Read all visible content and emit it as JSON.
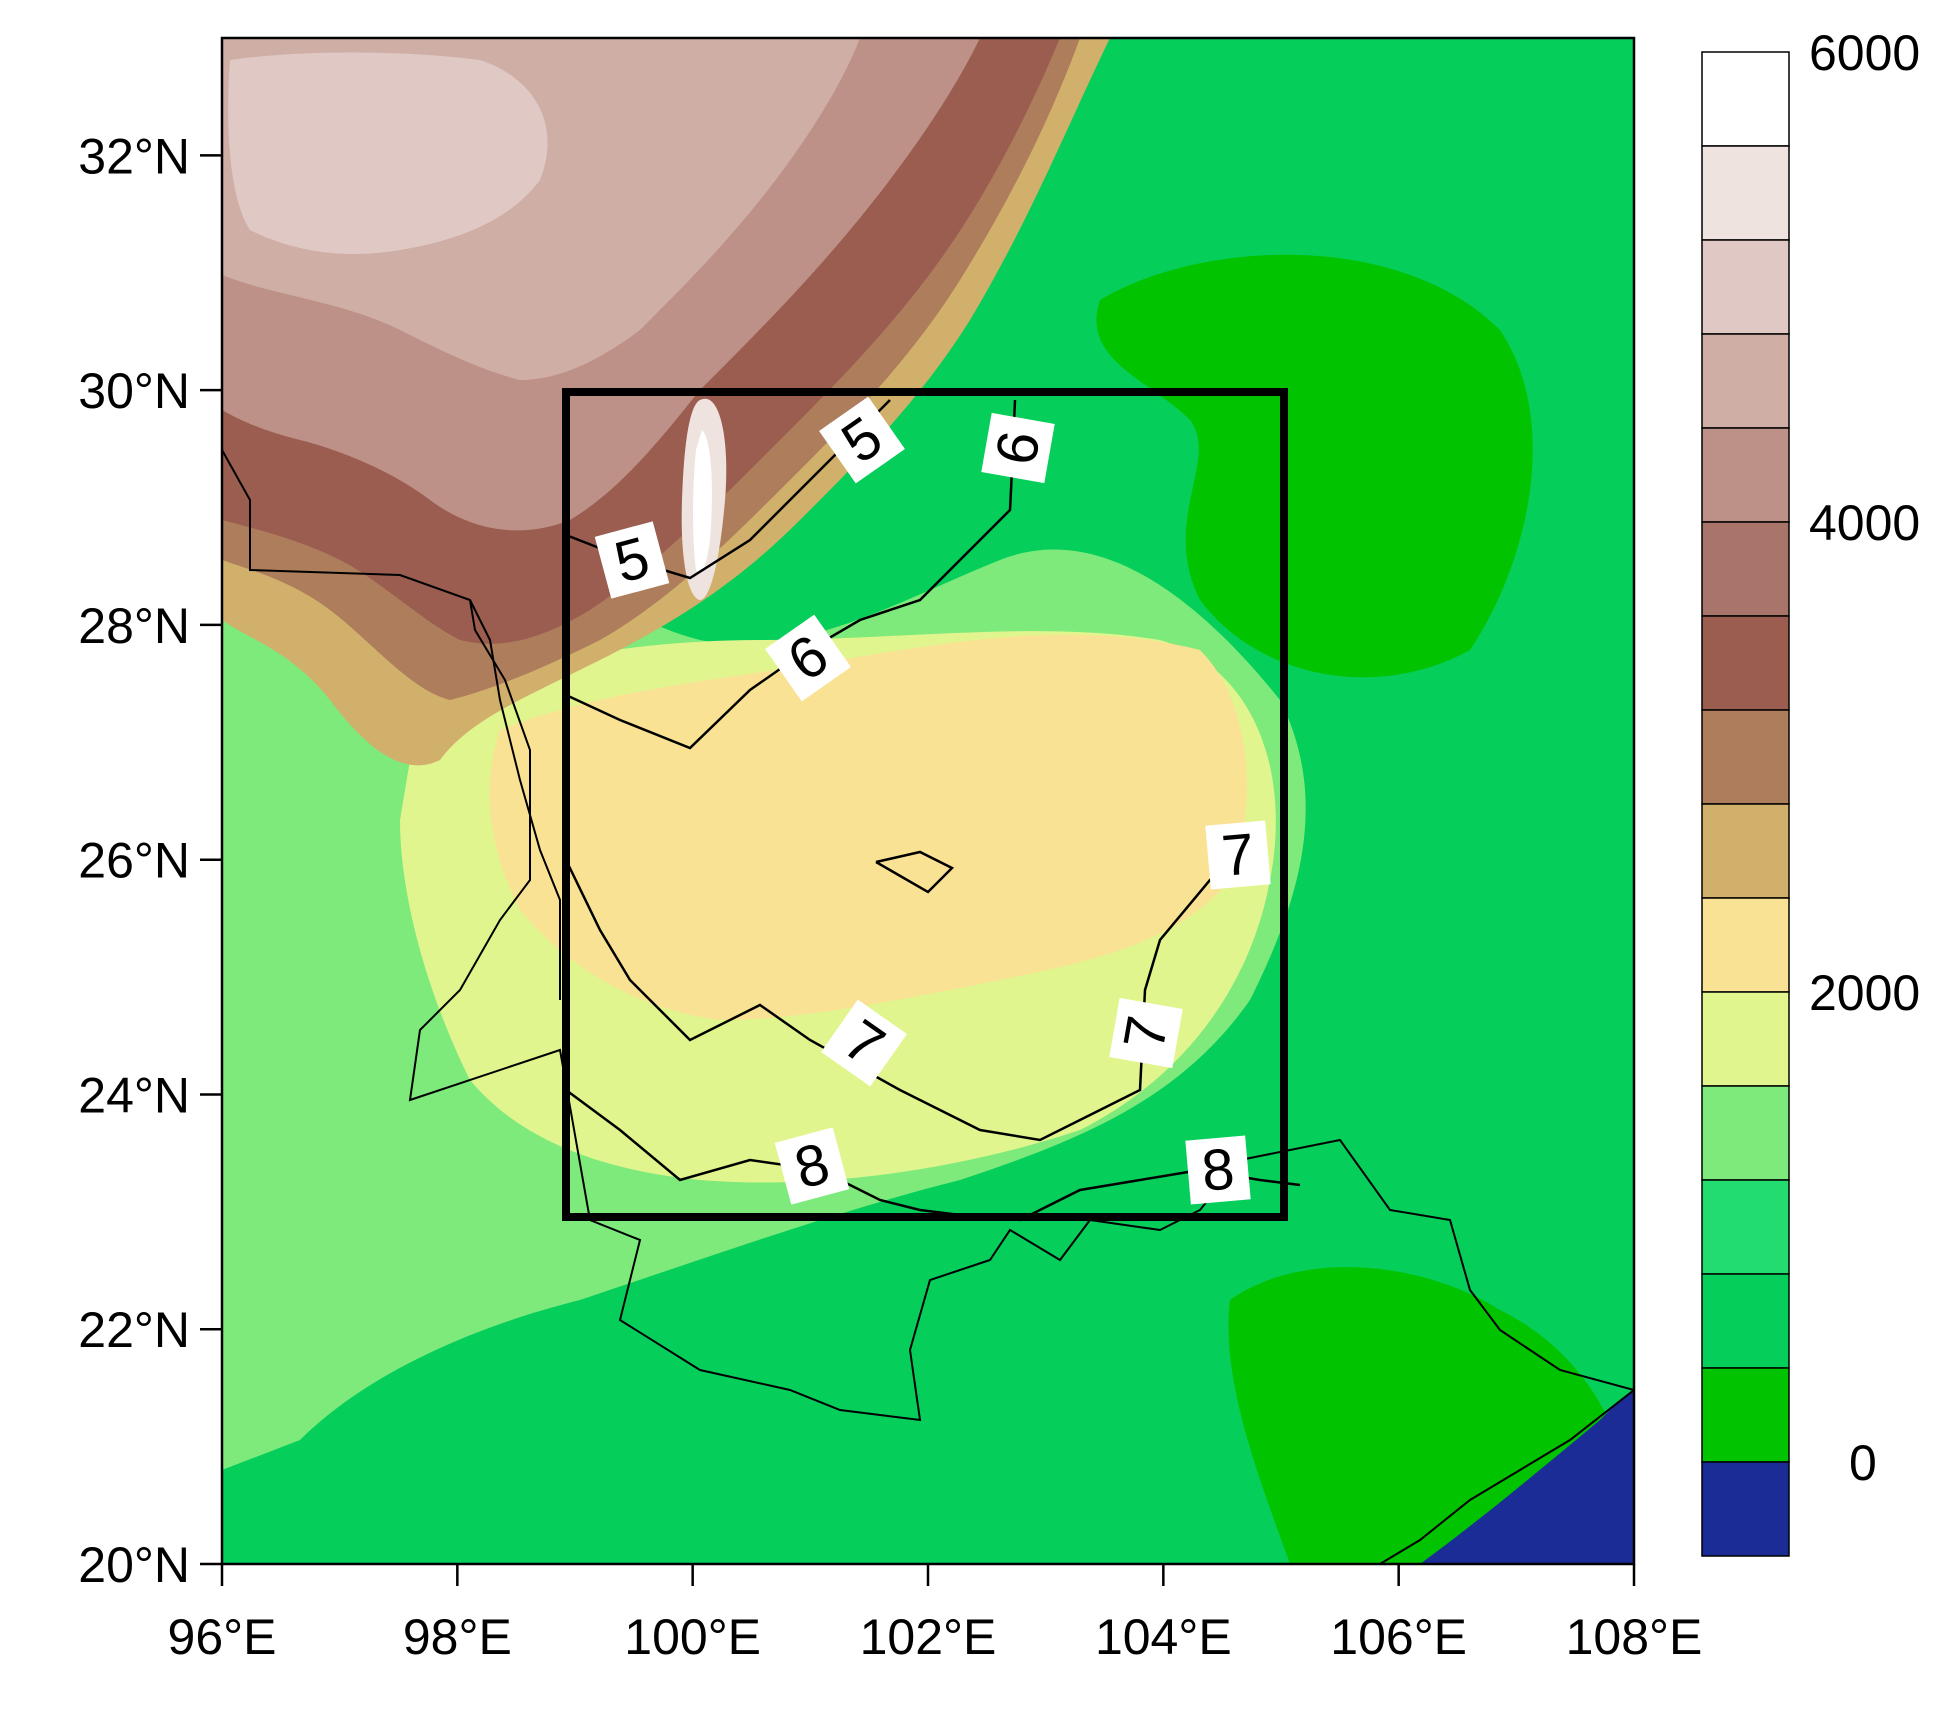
{
  "map": {
    "lon_range": [
      96,
      108
    ],
    "lat_range": [
      20,
      33
    ],
    "x_ticks": [
      "96°E",
      "98°E",
      "100°E",
      "102°E",
      "104°E",
      "106°E",
      "108°E"
    ],
    "y_ticks": [
      "20°N",
      "22°N",
      "24°N",
      "26°N",
      "28°N",
      "30°N",
      "32°N"
    ],
    "study_box": {
      "lon": [
        99,
        105
      ],
      "lat": [
        23,
        30
      ]
    }
  },
  "colorbar": {
    "labels": [
      "6000",
      "4000",
      "2000",
      "0"
    ],
    "colors": [
      "#ffffff",
      "#efe3e0",
      "#e0c9c5",
      "#cfaea6",
      "#bd9187",
      "#a9756a",
      "#9a5d50",
      "#ae7d5c",
      "#d1b06c",
      "#fae294",
      "#e0f58e",
      "#7dea7b",
      "#22dc6f",
      "#06ce5a",
      "#02c300",
      "#1b2c97"
    ]
  },
  "contour_labels": [
    "5",
    "5",
    "6",
    "6",
    "7",
    "7",
    "7",
    "8",
    "8"
  ],
  "colors": {
    "ocean": "#1b2c97",
    "lowland": "#06ce5a",
    "frame": "#000000"
  }
}
